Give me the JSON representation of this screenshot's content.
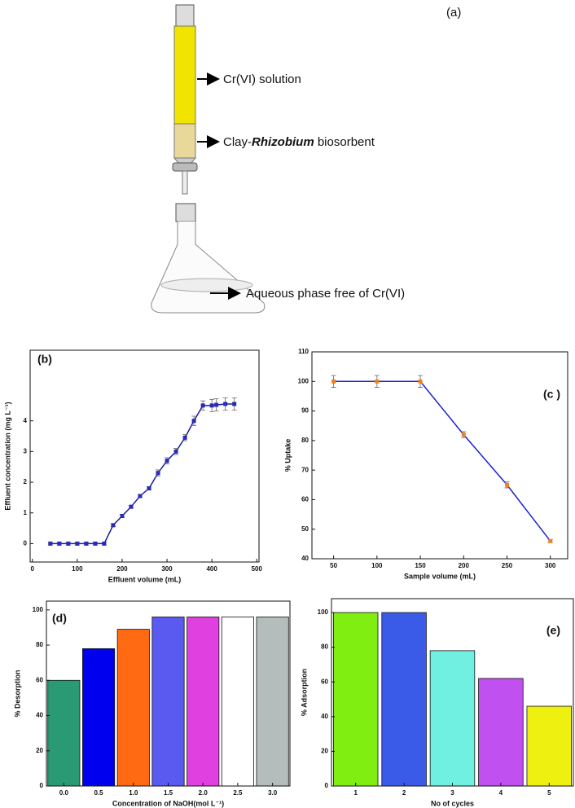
{
  "diagram": {
    "label": "(a)",
    "solution_label": "Cr(VI) solution",
    "biosorbent_label": {
      "before": "Clay-",
      "italic": "Rhizobium",
      "after": " biosorbent"
    },
    "aqueous_label": "Aqueous phase free of Cr(VI)"
  },
  "chart_data": [
    {
      "type": "line",
      "panel_label": "(b)",
      "xlabel": "Effluent volume (mL)",
      "ylabel": "Effluent concentration (mg L⁻¹)",
      "x": [
        40,
        60,
        80,
        100,
        120,
        140,
        160,
        180,
        200,
        220,
        240,
        260,
        280,
        300,
        320,
        340,
        360,
        380,
        400,
        410,
        430,
        450
      ],
      "series": [
        {
          "color": "#1a1aa0",
          "marker_color": "#2a2ab8",
          "values": [
            0,
            0,
            0,
            0,
            0,
            0,
            0,
            0.6,
            0.9,
            1.2,
            1.55,
            1.8,
            2.3,
            2.7,
            3.0,
            3.45,
            4.0,
            4.5,
            4.5,
            4.52,
            4.55,
            4.55
          ],
          "errors": [
            0.05,
            0.05,
            0.05,
            0.05,
            0.05,
            0.05,
            0.05,
            0.05,
            0.05,
            0.05,
            0.05,
            0.05,
            0.1,
            0.1,
            0.1,
            0.1,
            0.15,
            0.15,
            0.2,
            0.2,
            0.2,
            0.2
          ]
        }
      ],
      "xlim": [
        -5,
        505
      ],
      "xticks": [
        0,
        100,
        200,
        300,
        400,
        500
      ],
      "ylim": [
        -0.6,
        6.3
      ],
      "yticks": [
        0,
        1,
        2,
        3,
        4
      ]
    },
    {
      "type": "line",
      "panel_label": "(c )",
      "xlabel": "Sample volume (mL)",
      "ylabel": "% Uptake",
      "x": [
        50,
        100,
        150,
        200,
        250,
        300
      ],
      "series": [
        {
          "color": "#2020d0",
          "marker_color": "#f08020",
          "values": [
            100,
            100,
            100,
            82,
            65,
            46
          ],
          "errors": [
            2,
            2,
            2,
            1,
            1,
            0.5
          ]
        }
      ],
      "xlim": [
        25,
        320
      ],
      "xticks": [
        50,
        100,
        150,
        200,
        250,
        300
      ],
      "ylim": [
        40,
        110
      ],
      "yticks": [
        40,
        50,
        60,
        70,
        80,
        90,
        100,
        110
      ]
    },
    {
      "type": "bar",
      "panel_label": "(d)",
      "xlabel": "Concentration of NaOH(mol L⁻¹)",
      "ylabel": "% Desorption",
      "x": [
        0,
        0.5,
        1,
        1.5,
        2,
        2.5,
        3
      ],
      "values": [
        60,
        78,
        89,
        96,
        96,
        96,
        96
      ],
      "colors": [
        "#2a9a74",
        "#0000ee",
        "#ff6a13",
        "#5a5af0",
        "#e040e0",
        "#ffffff",
        "#b4bcbc"
      ],
      "xlim": [
        -0.25,
        3.25
      ],
      "xticks": [
        {
          "value": 0,
          "label": "0.0"
        },
        0.5,
        {
          "value": 1,
          "label": "1.0"
        },
        1.5,
        {
          "value": 2,
          "label": "2.0"
        },
        2.5,
        {
          "value": 3,
          "label": "3.0"
        }
      ],
      "ylim": [
        0,
        105
      ],
      "yticks": [
        0,
        20,
        40,
        60,
        80,
        100
      ]
    },
    {
      "type": "bar",
      "panel_label": "(e)",
      "xlabel": "No of cycles",
      "ylabel": "% Adsorption",
      "x": [
        1,
        2,
        3,
        4,
        5
      ],
      "values": [
        100,
        100,
        78,
        62,
        46
      ],
      "colors": [
        "#80ee10",
        "#3a5ae8",
        "#70f0e0",
        "#c050f0",
        "#eef010"
      ],
      "xlim": [
        0.5,
        5.5
      ],
      "xticks": [
        1,
        2,
        3,
        4,
        5
      ],
      "ylim": [
        0,
        108
      ],
      "yticks": [
        0,
        20,
        40,
        60,
        80,
        100
      ]
    }
  ]
}
